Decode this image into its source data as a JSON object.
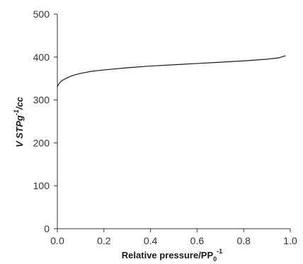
{
  "chart_data": {
    "type": "line",
    "title": "",
    "xlabel": {
      "prefix": "Relative pressure/PP",
      "sub": "0",
      "sup": "-1"
    },
    "ylabel": {
      "prefix": "V STPg",
      "sup": "-1",
      "suffix": "/cc"
    },
    "xlim": [
      0.0,
      1.0
    ],
    "ylim": [
      0,
      500
    ],
    "xticks": [
      "0.0",
      "0.2",
      "0.4",
      "0.6",
      "0.8",
      "1.0"
    ],
    "yticks": [
      "0",
      "100",
      "200",
      "300",
      "400",
      "500"
    ],
    "grid": false,
    "line_color": "#1a1a1a",
    "series": [
      {
        "x": [
          0.0,
          0.005,
          0.01,
          0.02,
          0.04,
          0.06,
          0.08,
          0.1,
          0.15,
          0.2,
          0.3,
          0.4,
          0.5,
          0.6,
          0.7,
          0.8,
          0.9,
          0.95,
          0.98
        ],
        "y": [
          331,
          336,
          340,
          345,
          351,
          356,
          359,
          362,
          367,
          370,
          375,
          379,
          382,
          385,
          388,
          391,
          395,
          398,
          403
        ]
      }
    ]
  }
}
